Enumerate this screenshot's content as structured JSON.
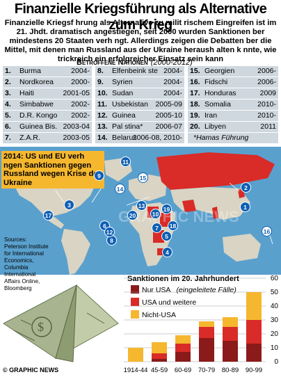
{
  "title": "Finanzielle Kriegsführung als Alternative zum Krieg",
  "intro": "Finanzielle Kriegsf   hrung als Alternative zu milit   rischem Eingreifen ist im 21. Jhdt. dramatisch angestiegen, seit 2000 wurden Sanktionen   ber mindestens 20 Staaten verh   ngt. Allerdings zeigen die Debatten   ber die Mittel, mit denen man Russland aus der Ukraine heraush alten k   nnte, wie trickreich ein erfolgreicher Einsatz sein kann",
  "section_title": "Betroffene Nationen",
  "section_years": "(2000-2012)",
  "countries": [
    {
      "num": "1.",
      "name": "Burma",
      "years": "2004-"
    },
    {
      "num": "2.",
      "name": "Nordkorea",
      "years": "2000-"
    },
    {
      "num": "3.",
      "name": "Haiti",
      "years": "2001-05"
    },
    {
      "num": "4.",
      "name": "Simbabwe",
      "years": "2002-"
    },
    {
      "num": "5.",
      "name": "D.R. Kongo",
      "years": "2002-"
    },
    {
      "num": "6.",
      "name": "Guinea Bis.",
      "years": "2003-04"
    },
    {
      "num": "7.",
      "name": "Z.A.R.",
      "years": "2003-05"
    },
    {
      "num": "8.",
      "name": "Elfenbeink ste",
      "years": "2004-"
    },
    {
      "num": "9.",
      "name": "Syrien",
      "years": "2004-"
    },
    {
      "num": "10.",
      "name": "Sudan",
      "years": "2004-"
    },
    {
      "num": "11.",
      "name": "Usbekistan",
      "years": "2005-09"
    },
    {
      "num": "12.",
      "name": "Guinea",
      "years": "2005-10"
    },
    {
      "num": "13.",
      "name": "Pal stina*",
      "years": "2006-07"
    },
    {
      "num": "14.",
      "name": "Belarus",
      "years": "2006-08, 2010-"
    },
    {
      "num": "15.",
      "name": "Georgien",
      "years": "2006-"
    },
    {
      "num": "16.",
      "name": "Fidschi",
      "years": "2006-"
    },
    {
      "num": "17.",
      "name": "Honduras",
      "years": "2009"
    },
    {
      "num": "18.",
      "name": "Somalia",
      "years": "2010-"
    },
    {
      "num": "19.",
      "name": "Iran",
      "years": "2010-"
    },
    {
      "num": "20.",
      "name": "Libyen",
      "years": "2011"
    }
  ],
  "footnote": "*Hamas Führung",
  "banner": "2014: US und EU verh   ngen Sanktionen gegen Russland wegen Krise der Ukraine",
  "markers": [
    "1",
    "2",
    "3",
    "4",
    "5",
    "6",
    "7",
    "8",
    "9",
    "10",
    "11",
    "12",
    "13",
    "14",
    "15",
    "16",
    "17",
    "18",
    "19",
    "20"
  ],
  "sources": "Sources: Peterson Institute for International Economics, Columbia International Affairs Online, Bloomberg",
  "watermark": "GRAPHIC NEWS",
  "credit": "© GRAPHIC NEWS",
  "colors": {
    "us_only": "#8b1a1a",
    "us_and_others": "#d92b27",
    "non_us": "#f5b72e",
    "ocean": "#5aa0cd",
    "land": "#d9d4c3",
    "russia": "#d92b27",
    "marker": "#0f5fb3"
  },
  "chart_data": {
    "type": "bar",
    "stacked": true,
    "title": "Sanktionen im 20. Jahrhundert",
    "categories": [
      "1914-44",
      "45-59",
      "60-69",
      "70-79",
      "80-89",
      "90-99"
    ],
    "series": [
      {
        "name": "Nur USA",
        "values": [
          0,
          2,
          7,
          17,
          15,
          13
        ]
      },
      {
        "name": "USA und weitere",
        "values": [
          0,
          4,
          6,
          8,
          10,
          17
        ]
      },
      {
        "name": "Nicht-USA",
        "values": [
          10,
          8,
          6,
          4,
          7,
          20
        ]
      }
    ],
    "legend_note": "(eingeleitete Fälle)",
    "yticks": [
      0,
      10,
      20,
      30,
      40,
      50,
      60
    ],
    "ylim": [
      0,
      60
    ]
  }
}
